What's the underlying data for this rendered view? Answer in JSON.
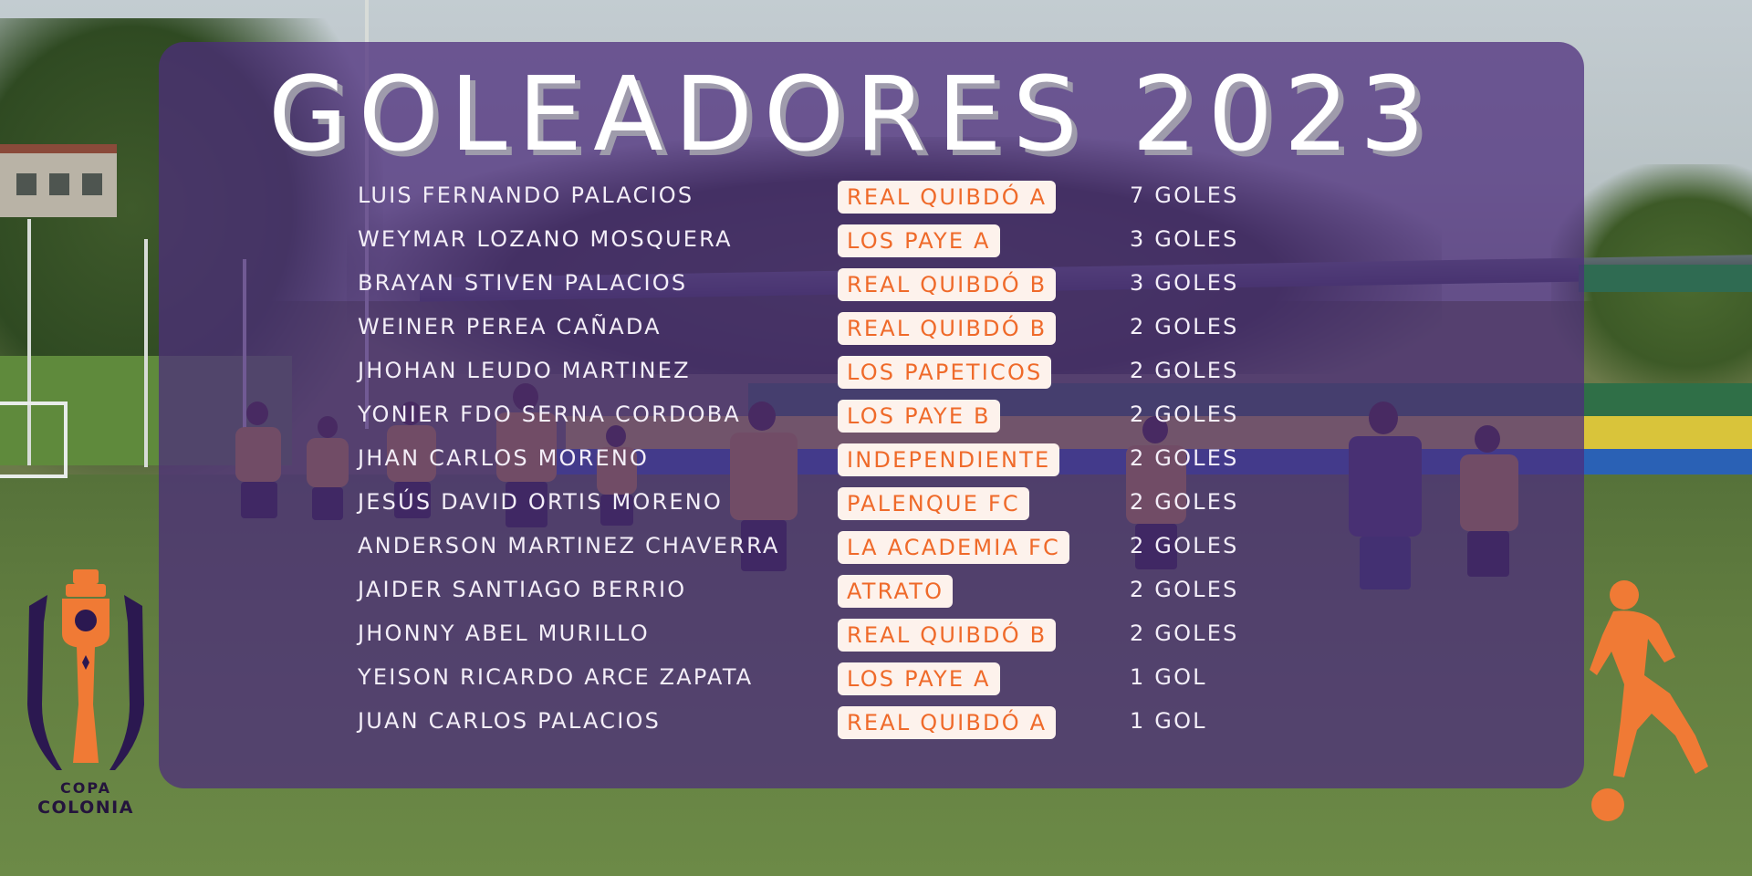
{
  "title": "GOLEADORES 2023",
  "scorers": [
    {
      "name": "LUIS FERNANDO PALACIOS",
      "team": "REAL QUIBDÓ A",
      "goals": "7 GOLES"
    },
    {
      "name": "WEYMAR LOZANO MOSQUERA",
      "team": "LOS PAYE A",
      "goals": "3 GOLES"
    },
    {
      "name": "BRAYAN STIVEN PALACIOS",
      "team": "REAL QUIBDÓ B",
      "goals": "3 GOLES"
    },
    {
      "name": "WEINER PEREA CAÑADA",
      "team": "REAL QUIBDÓ B",
      "goals": "2 GOLES"
    },
    {
      "name": "JHOHAN LEUDO MARTINEZ",
      "team": "LOS PAPETICOS",
      "goals": "2 GOLES"
    },
    {
      "name": "YONIER FDO SERNA CORDOBA",
      "team": "LOS PAYE B",
      "goals": "2 GOLES"
    },
    {
      "name": "JHAN CARLOS MORENO",
      "team": "INDEPENDIENTE",
      "goals": "2 GOLES"
    },
    {
      "name": "JESÚS DAVID ORTIS MORENO",
      "team": "PALENQUE FC",
      "goals": "2 GOLES"
    },
    {
      "name": "ANDERSON MARTINEZ CHAVERRA",
      "team": "LA ACADEMIA FC",
      "goals": "2 GOLES"
    },
    {
      "name": "JAIDER SANTIAGO BERRIO",
      "team": "ATRATO",
      "goals": "2 GOLES"
    },
    {
      "name": "JHONNY ABEL MURILLO",
      "team": "REAL QUIBDÓ B",
      "goals": "2 GOLES"
    },
    {
      "name": "YEISON RICARDO ARCE ZAPATA",
      "team": "LOS PAYE A",
      "goals": "1 GOL"
    },
    {
      "name": "JUAN CARLOS PALACIOS",
      "team": "REAL QUIBDÓ A",
      "goals": "1 GOL"
    }
  ],
  "logo": {
    "line1": "COPA",
    "line2": "COLONIA",
    "icon": "trophy-emblem-icon"
  },
  "decor_icon": "soccer-player-silhouette-icon",
  "colors": {
    "panel": "#4d2c7c",
    "badge_bg": "#fdf2ec",
    "badge_text": "#ef6a2a",
    "accent_orange": "#f07a35",
    "logo_dark": "#2b1850"
  }
}
